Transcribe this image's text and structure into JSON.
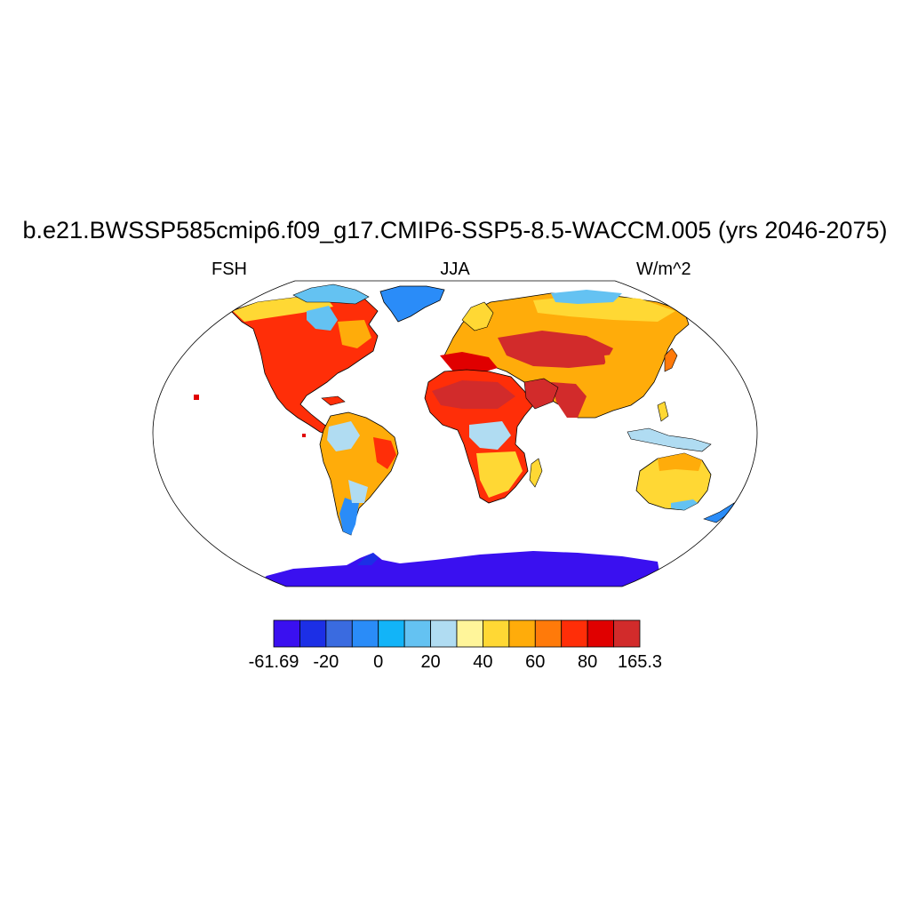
{
  "title": "b.e21.BWSSP585cmip6.f09_g17.CMIP6-SSP5-8.5-WACCM.005 (yrs 2046-2075)",
  "subtitle_left": "FSH",
  "subtitle_center": "JJA",
  "subtitle_right": "W/m^2",
  "colorbar": {
    "colors": [
      "#3a10f0",
      "#1c2fe6",
      "#3a6be0",
      "#2a8cf8",
      "#12b4f8",
      "#64c2f2",
      "#b0dcf2",
      "#fff59a",
      "#ffd834",
      "#ffac0a",
      "#ff7a0a",
      "#ff2e08",
      "#e00000",
      "#d22b2b"
    ],
    "tick_labels": [
      "-61.69",
      "-20",
      "0",
      "20",
      "40",
      "60",
      "80",
      "165.3"
    ],
    "tick_values": [
      -61.69,
      -20,
      0,
      20,
      40,
      60,
      80,
      165.3
    ]
  },
  "map": {
    "projection": "robinson",
    "land_fill_default": "#ffd834",
    "ocean_fill": "#ffffff",
    "coastline_color": "#000000"
  }
}
